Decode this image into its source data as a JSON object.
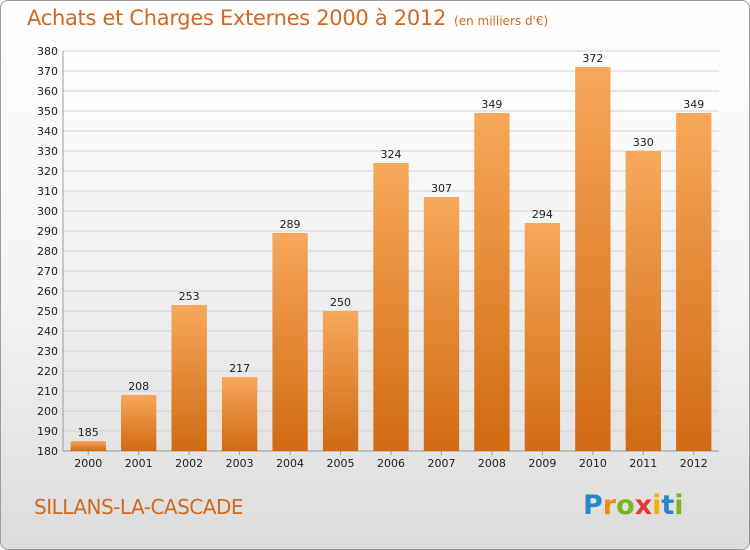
{
  "title": "Achats et Charges Externes 2000 à 2012",
  "subtitle": "(en milliers d'€)",
  "place": "SILLANS-LA-CASCADE",
  "logo": {
    "letters": [
      "P",
      "r",
      "o",
      "x",
      "i",
      "t",
      "i"
    ],
    "colors": [
      "#2b86c8",
      "#f08a1c",
      "#7ab51d",
      "#e53935",
      "#f0b400",
      "#2b86c8",
      "#7ab51d"
    ]
  },
  "colors": {
    "bar_top": "#f7a85a",
    "bar_bottom": "#d06a12",
    "title": "#d2691e"
  },
  "chart_data": {
    "type": "bar",
    "title": "Achats et Charges Externes 2000 à 2012",
    "subtitle": "(en milliers d'€)",
    "xlabel": "",
    "ylabel": "",
    "categories": [
      "2000",
      "2001",
      "2002",
      "2003",
      "2004",
      "2005",
      "2006",
      "2007",
      "2008",
      "2009",
      "2010",
      "2011",
      "2012"
    ],
    "values": [
      185,
      208,
      253,
      217,
      289,
      250,
      324,
      307,
      349,
      294,
      372,
      330,
      349
    ],
    "ylim": [
      180,
      380
    ],
    "ytick_step": 10,
    "grid": true
  }
}
